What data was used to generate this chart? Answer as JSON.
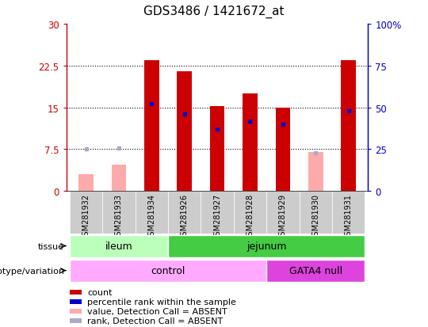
{
  "title": "GDS3486 / 1421672_at",
  "samples": [
    "GSM281932",
    "GSM281933",
    "GSM281934",
    "GSM281926",
    "GSM281927",
    "GSM281928",
    "GSM281929",
    "GSM281930",
    "GSM281931"
  ],
  "count_values": [
    null,
    null,
    23.5,
    21.5,
    15.2,
    17.5,
    15.0,
    null,
    23.5
  ],
  "count_absent_values": [
    3.0,
    4.7,
    null,
    null,
    null,
    null,
    null,
    7.0,
    null
  ],
  "rank_values_pct": [
    null,
    null,
    52.0,
    46.0,
    37.0,
    42.0,
    40.0,
    null,
    48.0
  ],
  "rank_absent_values_pct": [
    25.0,
    25.5,
    null,
    null,
    null,
    null,
    null,
    23.0,
    null
  ],
  "ylim_left": [
    0,
    30
  ],
  "ylim_right": [
    0,
    100
  ],
  "yticks_left": [
    0,
    7.5,
    15.0,
    22.5,
    30
  ],
  "yticks_right": [
    0,
    25,
    50,
    75,
    100
  ],
  "ytick_labels_left": [
    "0",
    "7.5",
    "15",
    "22.5",
    "30"
  ],
  "ytick_labels_right": [
    "0",
    "25",
    "50",
    "75",
    "100%"
  ],
  "left_axis_color": "#cc0000",
  "right_axis_color": "#0000cc",
  "bar_color_count": "#cc0000",
  "bar_color_count_absent": "#ffaaaa",
  "dot_color_rank": "#0000cc",
  "dot_color_rank_absent": "#aaaacc",
  "tissue_labels": [
    {
      "label": "ileum",
      "start": 0,
      "end": 2,
      "color": "#bbffbb"
    },
    {
      "label": "jejunum",
      "start": 3,
      "end": 8,
      "color": "#44cc44"
    }
  ],
  "genotype_labels": [
    {
      "label": "control",
      "start": 0,
      "end": 5,
      "color": "#ffaaff"
    },
    {
      "label": "GATA4 null",
      "start": 6,
      "end": 8,
      "color": "#dd44dd"
    }
  ],
  "legend_items": [
    {
      "color": "#cc0000",
      "label": "count"
    },
    {
      "color": "#0000cc",
      "label": "percentile rank within the sample"
    },
    {
      "color": "#ffaaaa",
      "label": "value, Detection Call = ABSENT"
    },
    {
      "color": "#aaaacc",
      "label": "rank, Detection Call = ABSENT"
    }
  ],
  "background_color": "#ffffff",
  "plot_bg_color": "#ffffff",
  "xticklabel_bg": "#cccccc"
}
